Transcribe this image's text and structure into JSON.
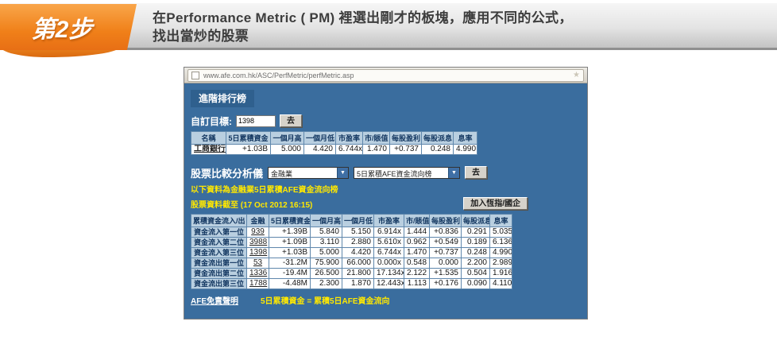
{
  "header": {
    "step_badge": "第2步",
    "instruction_line1": "在Performance Metric ( PM) 裡選出剛才的板塊，應用不同的公式，",
    "instruction_line2": "找出當炒的股票"
  },
  "browser": {
    "url": "www.afe.com.hk/ASC/PerfMetric/perfMetric.asp",
    "page": {
      "section_title": "進階排行榜",
      "custom_target": {
        "label": "自訂目標:",
        "value": "1398",
        "go_label": "去"
      },
      "table1": {
        "headers": [
          "名稱",
          "5日累積資金",
          "一個月高",
          "一個月低",
          "市盈率",
          "市/賬值",
          "每股盈利",
          "每股派息",
          "息率"
        ],
        "rows": [
          [
            "工商銀行",
            "+1.03B",
            "5.000",
            "4.420",
            "6.744x",
            "1.470",
            "+0.737",
            "0.248",
            "4.990"
          ]
        ]
      },
      "comparator": {
        "label": "股票比較分析儀",
        "sector_value": "金融業",
        "ranking_value": "5日累積AFE資金流向榜",
        "go_label": "去"
      },
      "note1": "以下資料為金融業5日累積AFE資金流向榜",
      "note2": "股票資料截至 (17 Oct 2012 16:15)",
      "add_button": "加入恆指/國企",
      "table2": {
        "headers": [
          "累積資金流入/出",
          "金融",
          "5日累積資金",
          "一個月高",
          "一個月低",
          "市盈率",
          "市/賬值",
          "每股盈利",
          "每股派息",
          "息率"
        ],
        "rows": [
          {
            "label": "資金流入第一位",
            "code": "939",
            "flow": "+1.39B",
            "cells": [
              "5.840",
              "5.150",
              "6.914x",
              "1.444",
              "+0.836",
              "0.291",
              "5.035"
            ]
          },
          {
            "label": "資金流入第二位",
            "code": "3988",
            "flow": "+1.09B",
            "cells": [
              "3.110",
              "2.880",
              "5.610x",
              "0.962",
              "+0.549",
              "0.189",
              "6.136"
            ]
          },
          {
            "label": "資金流入第三位",
            "code": "1398",
            "flow": "+1.03B",
            "cells": [
              "5.000",
              "4.420",
              "6.744x",
              "1.470",
              "+0.737",
              "0.248",
              "4.990"
            ]
          },
          {
            "label": "資金流出第一位",
            "code": "53",
            "flow": "-31.2M",
            "cells": [
              "75.900",
              "66.000",
              "0.000x",
              "0.548",
              "0.000",
              "2.200",
              "2.989"
            ]
          },
          {
            "label": "資金流出第二位",
            "code": "1336",
            "flow": "-19.4M",
            "cells": [
              "26.500",
              "21.800",
              "17.134x",
              "2.122",
              "+1.535",
              "0.504",
              "1.916"
            ]
          },
          {
            "label": "資金流出第三位",
            "code": "1788",
            "flow": "-4.48M",
            "cells": [
              "2.300",
              "1.870",
              "12.443x",
              "1.113",
              "+0.176",
              "0.090",
              "4.110"
            ]
          }
        ]
      },
      "footer": {
        "disclaimer": "AFE免責聲明",
        "formula": "5日累積資金 = 累積5日AFE資金流向"
      }
    }
  },
  "colors": {
    "accent_orange": "#f08019",
    "panel_blue": "#3a6d9e",
    "note_yellow": "#ffe800",
    "positive_green": "#00a651",
    "negative_red": "#ff5c5c",
    "table_header_blue": "#b9cfe0"
  }
}
